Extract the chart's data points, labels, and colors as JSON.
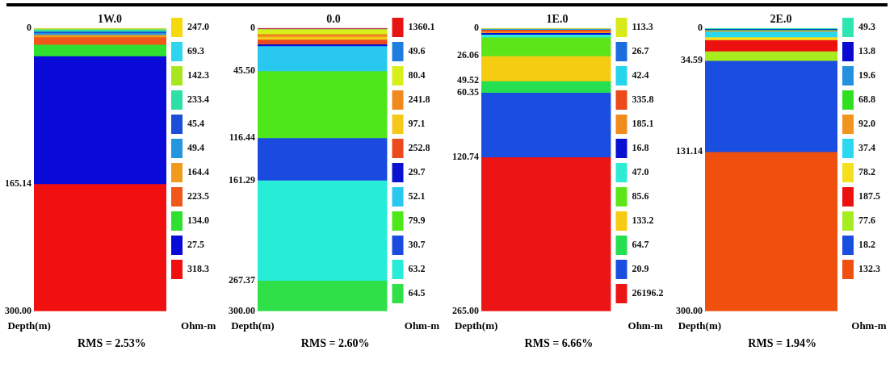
{
  "chart_data": [
    {
      "type": "bar",
      "title": "1W.0",
      "categories": [
        null
      ],
      "stacked": true,
      "ylabel": "Depth(m)",
      "legend_title": "Ohm-m",
      "legend": "right",
      "ylim": [
        300,
        0
      ],
      "yticks": [
        0,
        165.14,
        {
          "value": 300,
          "label": "300.00"
        }
      ],
      "annotations": [
        "RMS = 2.53%"
      ],
      "series": [
        {
          "name": "247.0",
          "color": "#f5d90a",
          "values": [
            0.5
          ]
        },
        {
          "name": "69.3",
          "color": "#2fd4ee",
          "values": [
            0.5
          ]
        },
        {
          "name": "142.3",
          "color": "#a8e61e",
          "values": [
            0.5
          ]
        },
        {
          "name": "233.4",
          "color": "#2ee0a8",
          "values": [
            2
          ]
        },
        {
          "name": "45.4",
          "color": "#1c4fd8",
          "values": [
            1.5
          ]
        },
        {
          "name": "49.4",
          "color": "#2496e0",
          "values": [
            2
          ]
        },
        {
          "name": "164.4",
          "color": "#f09a1e",
          "values": [
            2.5
          ]
        },
        {
          "name": "223.5",
          "color": "#f0581a",
          "values": [
            8
          ]
        },
        {
          "name": "134.0",
          "color": "#30e030",
          "values": [
            12
          ]
        },
        {
          "name": "27.5",
          "color": "#0a0ad8",
          "values": [
            135.64
          ]
        },
        {
          "name": "318.3",
          "color": "#f01010",
          "values": [
            134.86
          ]
        }
      ]
    },
    {
      "type": "bar",
      "title": "0.0",
      "categories": [
        null
      ],
      "stacked": true,
      "ylabel": "Depth(m)",
      "legend_title": "Ohm-m",
      "legend": "right",
      "ylim": [
        300,
        0
      ],
      "yticks": [
        0,
        {
          "value": 45.5,
          "label": "45.50"
        },
        116.44,
        161.29,
        267.37,
        {
          "value": 300,
          "label": "300.00"
        }
      ],
      "annotations": [
        "RMS = 2.60%"
      ],
      "series": [
        {
          "name": "1360.1",
          "color": "#e81414",
          "values": [
            0.5
          ]
        },
        {
          "name": "49.6",
          "color": "#1e7ee0",
          "values": [
            0.5
          ]
        },
        {
          "name": "80.4",
          "color": "#d8f01a",
          "values": [
            5
          ]
        },
        {
          "name": "241.8",
          "color": "#f08a1e",
          "values": [
            3
          ]
        },
        {
          "name": "97.1",
          "color": "#f5c81a",
          "values": [
            3
          ]
        },
        {
          "name": "252.8",
          "color": "#ec4a1c",
          "values": [
            5
          ]
        },
        {
          "name": "29.7",
          "color": "#0a14d0",
          "values": [
            2
          ]
        },
        {
          "name": "52.1",
          "color": "#28c8f0",
          "values": [
            26.5
          ]
        },
        {
          "name": "79.9",
          "color": "#4ee81a",
          "values": [
            70.94
          ]
        },
        {
          "name": "30.7",
          "color": "#1a4ae0",
          "values": [
            44.85
          ]
        },
        {
          "name": "63.2",
          "color": "#26ecd8",
          "values": [
            106.08
          ]
        },
        {
          "name": "64.5",
          "color": "#30e048",
          "values": [
            32.63
          ]
        }
      ]
    },
    {
      "type": "bar",
      "title": "1E.0",
      "categories": [
        null
      ],
      "stacked": true,
      "ylabel": "Depth(m)",
      "legend_title": "Ohm-m",
      "legend": "right",
      "ylim": [
        265,
        0
      ],
      "yticks": [
        0,
        26.06,
        49.52,
        60.35,
        120.74,
        {
          "value": 265,
          "label": "265.00"
        }
      ],
      "annotations": [
        "RMS = 6.66%"
      ],
      "series": [
        {
          "name": "113.3",
          "color": "#d8ea1a",
          "values": [
            0.5
          ]
        },
        {
          "name": "26.7",
          "color": "#1a6ee0",
          "values": [
            0.5
          ]
        },
        {
          "name": "42.4",
          "color": "#26d4ec",
          "values": [
            0.5
          ]
        },
        {
          "name": "335.8",
          "color": "#ec4a18",
          "values": [
            1.5
          ]
        },
        {
          "name": "185.1",
          "color": "#f08c1e",
          "values": [
            1.5
          ]
        },
        {
          "name": "16.8",
          "color": "#0a10d0",
          "values": [
            1.5
          ]
        },
        {
          "name": "47.0",
          "color": "#2eecd4",
          "values": [
            2.5
          ]
        },
        {
          "name": "85.6",
          "color": "#5ce61a",
          "values": [
            17.56
          ]
        },
        {
          "name": "133.2",
          "color": "#f5cc12",
          "values": [
            23.46
          ]
        },
        {
          "name": "64.7",
          "color": "#24e050",
          "values": [
            10.83
          ]
        },
        {
          "name": "20.9",
          "color": "#1a4ee0",
          "values": [
            60.39
          ]
        },
        {
          "name": "26196.2",
          "color": "#ec1414",
          "values": [
            144.26
          ]
        }
      ]
    },
    {
      "type": "bar",
      "title": "2E.0",
      "categories": [
        null
      ],
      "stacked": true,
      "ylabel": "Depth(m)",
      "legend_title": "Ohm-m",
      "legend": "right",
      "ylim": [
        300,
        0
      ],
      "yticks": [
        0,
        34.59,
        131.14,
        {
          "value": 300,
          "label": "300.00"
        }
      ],
      "annotations": [
        "RMS = 1.94%"
      ],
      "series": [
        {
          "name": "49.3",
          "color": "#2ee6b0",
          "values": [
            1
          ]
        },
        {
          "name": "13.8",
          "color": "#0a0ad0",
          "values": [
            0.5
          ]
        },
        {
          "name": "19.6",
          "color": "#2490e0",
          "values": [
            0.5
          ]
        },
        {
          "name": "68.8",
          "color": "#30e020",
          "values": [
            0.5
          ]
        },
        {
          "name": "92.0",
          "color": "#f0961e",
          "values": [
            1
          ]
        },
        {
          "name": "37.4",
          "color": "#2ad8f0",
          "values": [
            6
          ]
        },
        {
          "name": "78.2",
          "color": "#f5e020",
          "values": [
            3
          ]
        },
        {
          "name": "187.5",
          "color": "#ec1010",
          "values": [
            12
          ]
        },
        {
          "name": "77.6",
          "color": "#a6ec1e",
          "values": [
            10.09
          ]
        },
        {
          "name": "18.2",
          "color": "#1a4ee0",
          "values": [
            96.55
          ]
        },
        {
          "name": "132.3",
          "color": "#f0500e",
          "values": [
            168.86
          ]
        }
      ]
    }
  ]
}
